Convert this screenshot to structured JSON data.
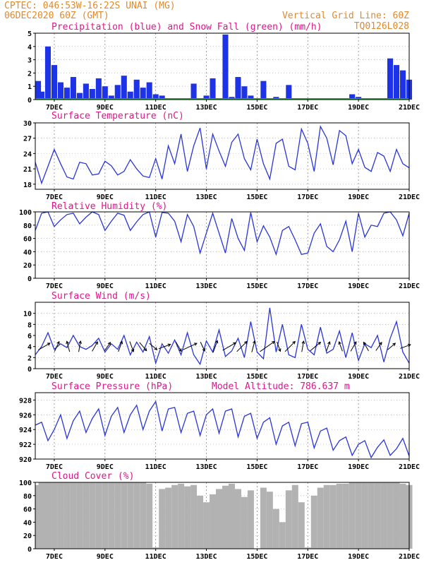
{
  "header": {
    "line1_left": "CPTEC:   046:53W-16:22S   UNAI (MG)",
    "line2_left": "06DEC2020 60Z (GMT)",
    "line1_right": "Vertical Grid Line: 60Z",
    "line2_right": "TQ0126L028"
  },
  "x_axis": {
    "start_day": 6.25,
    "end_day": 21.0,
    "tick_labels": [
      "7DEC",
      "9DEC",
      "11DEC",
      "13DEC",
      "15DEC",
      "17DEC",
      "19DEC",
      "21DEC"
    ],
    "tick_days": [
      7,
      9,
      11,
      13,
      15,
      17,
      19,
      21
    ]
  },
  "chart_data": [
    {
      "id": "precip",
      "type": "bar",
      "title": "Precipitation (blue) and Snow Fall (green) (mm/h)",
      "ylim": [
        0,
        5
      ],
      "yticks": [
        0,
        1,
        2,
        3,
        4,
        5
      ],
      "colors": {
        "precip": "#1e32e6",
        "snow": "#1faa3a"
      },
      "series": [
        {
          "name": "precip",
          "x": [
            6.25,
            6.5,
            6.75,
            7.0,
            7.25,
            7.5,
            7.75,
            8.0,
            8.25,
            8.5,
            8.75,
            9.0,
            9.25,
            9.5,
            9.75,
            10.0,
            10.25,
            10.5,
            10.75,
            11.0,
            11.25,
            11.5,
            11.75,
            12.0,
            12.25,
            12.5,
            12.75,
            13.0,
            13.25,
            13.5,
            13.75,
            14.0,
            14.25,
            14.5,
            14.75,
            15.0,
            15.25,
            15.5,
            15.75,
            16.0,
            16.25,
            16.5,
            16.75,
            17.0,
            17.25,
            17.5,
            17.75,
            18.0,
            18.25,
            18.5,
            18.75,
            19.0,
            19.25,
            19.5,
            19.75,
            20.0,
            20.25,
            20.5,
            20.75,
            21.0
          ],
          "values": [
            1.4,
            0.6,
            4.0,
            2.6,
            1.3,
            0.9,
            1.7,
            0.5,
            1.2,
            0.8,
            1.6,
            1.0,
            0.3,
            1.1,
            1.8,
            0.6,
            1.5,
            0.9,
            1.3,
            0.4,
            0.3,
            0.0,
            0.0,
            0.0,
            0.1,
            1.2,
            0.0,
            0.3,
            1.6,
            0.0,
            4.9,
            0.2,
            1.7,
            1.0,
            0.3,
            0.0,
            1.4,
            0.1,
            0.2,
            0.1,
            1.1,
            0.0,
            0.0,
            0.0,
            0.0,
            0.0,
            0.0,
            0.0,
            0.0,
            0.0,
            0.4,
            0.2,
            0.1,
            0.1,
            0.1,
            0.0,
            3.1,
            2.6,
            2.2,
            1.5
          ]
        },
        {
          "name": "snow",
          "values": [
            0,
            0,
            0,
            0,
            0,
            0,
            0,
            0,
            0,
            0,
            0,
            0,
            0,
            0,
            0,
            0,
            0,
            0,
            0,
            0,
            0,
            0,
            0,
            0,
            0,
            0,
            0,
            0,
            0,
            0,
            0,
            0,
            0,
            0,
            0,
            0,
            0,
            0,
            0,
            0,
            0,
            0,
            0,
            0,
            0,
            0,
            0,
            0,
            0,
            0,
            0,
            0,
            0,
            0,
            0,
            0,
            0,
            0,
            0,
            0
          ]
        }
      ]
    },
    {
      "id": "temp",
      "type": "line",
      "title": "Surface Temperature (nC)",
      "ylim": [
        17,
        30
      ],
      "yticks": [
        18,
        21,
        24,
        27,
        30
      ],
      "series": [
        {
          "name": "temperature",
          "x": [
            6.25,
            6.5,
            6.75,
            7.0,
            7.25,
            7.5,
            7.75,
            8.0,
            8.25,
            8.5,
            8.75,
            9.0,
            9.25,
            9.5,
            9.75,
            10.0,
            10.25,
            10.5,
            10.75,
            11.0,
            11.25,
            11.5,
            11.75,
            12.0,
            12.25,
            12.5,
            12.75,
            13.0,
            13.25,
            13.5,
            13.75,
            14.0,
            14.25,
            14.5,
            14.75,
            15.0,
            15.25,
            15.5,
            15.75,
            16.0,
            16.25,
            16.5,
            16.75,
            17.0,
            17.25,
            17.5,
            17.75,
            18.0,
            18.25,
            18.5,
            18.75,
            19.0,
            19.25,
            19.5,
            19.75,
            20.0,
            20.25,
            20.5,
            20.75,
            21.0
          ],
          "values": [
            22.3,
            18.2,
            21.5,
            24.8,
            22.0,
            19.4,
            19.0,
            22.3,
            22.0,
            19.8,
            20.0,
            22.5,
            21.6,
            19.8,
            20.5,
            22.8,
            21.0,
            19.6,
            19.3,
            23.0,
            19.0,
            25.5,
            22.0,
            27.8,
            20.5,
            25.5,
            29.0,
            21.0,
            27.8,
            24.5,
            21.5,
            26.2,
            27.8,
            23.0,
            20.8,
            26.8,
            22.0,
            19.0,
            26.0,
            26.8,
            21.5,
            20.8,
            28.8,
            26.0,
            20.5,
            29.3,
            27.0,
            21.8,
            28.5,
            27.5,
            22.0,
            24.8,
            21.3,
            20.5,
            24.2,
            23.5,
            20.5,
            24.8,
            22.0,
            21.2
          ]
        }
      ]
    },
    {
      "id": "rh",
      "type": "line",
      "title": "Relative Humidity (%)",
      "ylim": [
        0,
        100
      ],
      "yticks": [
        0,
        20,
        40,
        60,
        80,
        100
      ],
      "series": [
        {
          "name": "relative_humidity",
          "x": [
            6.25,
            6.5,
            6.75,
            7.0,
            7.25,
            7.5,
            7.75,
            8.0,
            8.25,
            8.5,
            8.75,
            9.0,
            9.25,
            9.5,
            9.75,
            10.0,
            10.25,
            10.5,
            10.75,
            11.0,
            11.25,
            11.5,
            11.75,
            12.0,
            12.25,
            12.5,
            12.75,
            13.0,
            13.25,
            13.5,
            13.75,
            14.0,
            14.25,
            14.5,
            14.75,
            15.0,
            15.25,
            15.5,
            15.75,
            16.0,
            16.25,
            16.5,
            16.75,
            17.0,
            17.25,
            17.5,
            17.75,
            18.0,
            18.25,
            18.5,
            18.75,
            19.0,
            19.25,
            19.5,
            19.75,
            20.0,
            20.25,
            20.5,
            20.75,
            21.0
          ],
          "values": [
            72,
            98,
            100,
            78,
            88,
            96,
            98,
            82,
            92,
            100,
            96,
            72,
            86,
            98,
            95,
            72,
            85,
            96,
            100,
            62,
            99,
            98,
            86,
            55,
            96,
            78,
            38,
            68,
            98,
            68,
            38,
            90,
            60,
            42,
            99,
            55,
            79,
            62,
            36,
            72,
            78,
            58,
            36,
            38,
            68,
            82,
            48,
            40,
            58,
            86,
            40,
            98,
            62,
            80,
            78,
            98,
            100,
            88,
            64,
            98
          ]
        }
      ]
    },
    {
      "id": "wind",
      "type": "line",
      "title": "Surface Wind (m/s)",
      "ylim": [
        0,
        12
      ],
      "yticks": [
        0,
        2,
        4,
        6,
        8,
        10
      ],
      "series": [
        {
          "name": "wind_speed",
          "x": [
            6.25,
            6.5,
            6.75,
            7.0,
            7.25,
            7.5,
            7.75,
            8.0,
            8.25,
            8.5,
            8.75,
            9.0,
            9.25,
            9.5,
            9.75,
            10.0,
            10.25,
            10.5,
            10.75,
            11.0,
            11.25,
            11.5,
            11.75,
            12.0,
            12.25,
            12.5,
            12.75,
            13.0,
            13.25,
            13.5,
            13.75,
            14.0,
            14.25,
            14.5,
            14.75,
            15.0,
            15.25,
            15.5,
            15.75,
            16.0,
            16.25,
            16.5,
            16.75,
            17.0,
            17.25,
            17.5,
            17.75,
            18.0,
            18.25,
            18.5,
            18.75,
            19.0,
            19.25,
            19.5,
            19.75,
            20.0,
            20.25,
            20.5,
            20.75,
            21.0
          ],
          "values": [
            2.5,
            4.0,
            6.5,
            3.5,
            4.5,
            3.8,
            6.0,
            4.0,
            3.5,
            4.2,
            5.5,
            3.0,
            4.5,
            3.5,
            6.0,
            2.5,
            4.8,
            3.0,
            5.8,
            1.0,
            4.5,
            2.8,
            5.2,
            2.5,
            6.5,
            2.5,
            0.8,
            5.0,
            3.0,
            7.0,
            2.2,
            3.2,
            5.5,
            2.0,
            8.5,
            3.0,
            1.8,
            11.0,
            3.0,
            8.0,
            2.5,
            2.0,
            8.0,
            3.5,
            2.5,
            7.5,
            2.8,
            3.5,
            6.8,
            2.0,
            6.5,
            1.5,
            4.5,
            3.8,
            6.0,
            1.2,
            5.5,
            8.5,
            3.0,
            1.0
          ]
        }
      ],
      "arrows": [
        {
          "x": 6.6,
          "speed": 5.0,
          "dir_deg": 60
        },
        {
          "x": 7.1,
          "speed": 3.5,
          "dir_deg": 25
        },
        {
          "x": 7.55,
          "speed": 3.5,
          "dir_deg": 345
        },
        {
          "x": 8.0,
          "speed": 3.5,
          "dir_deg": 10
        },
        {
          "x": 8.6,
          "speed": 3.5,
          "dir_deg": 30
        },
        {
          "x": 9.1,
          "speed": 3.0,
          "dir_deg": 35
        },
        {
          "x": 9.6,
          "speed": 3.5,
          "dir_deg": 20
        },
        {
          "x": 10.05,
          "speed": 3.5,
          "dir_deg": 160
        },
        {
          "x": 10.5,
          "speed": 3.5,
          "dir_deg": 140
        },
        {
          "x": 10.9,
          "speed": 3.0,
          "dir_deg": 130
        },
        {
          "x": 11.35,
          "speed": 4.5,
          "dir_deg": 70
        },
        {
          "x": 11.9,
          "speed": 3.5,
          "dir_deg": 150
        },
        {
          "x": 12.35,
          "speed": 6.0,
          "dir_deg": 65
        },
        {
          "x": 12.85,
          "speed": 3.0,
          "dir_deg": 155
        },
        {
          "x": 13.35,
          "speed": 4.5,
          "dir_deg": 20
        },
        {
          "x": 13.9,
          "speed": 6.0,
          "dir_deg": 60
        },
        {
          "x": 14.4,
          "speed": 5.5,
          "dir_deg": 45
        },
        {
          "x": 14.85,
          "speed": 4.0,
          "dir_deg": 15
        },
        {
          "x": 15.4,
          "speed": 7.5,
          "dir_deg": 55
        },
        {
          "x": 15.85,
          "speed": 3.0,
          "dir_deg": 160
        },
        {
          "x": 16.3,
          "speed": 5.5,
          "dir_deg": 45
        },
        {
          "x": 16.8,
          "speed": 3.5,
          "dir_deg": 10
        },
        {
          "x": 17.3,
          "speed": 5.0,
          "dir_deg": 50
        },
        {
          "x": 17.8,
          "speed": 3.0,
          "dir_deg": 20
        },
        {
          "x": 18.3,
          "speed": 3.0,
          "dir_deg": 340
        },
        {
          "x": 18.8,
          "speed": 3.5,
          "dir_deg": 30
        },
        {
          "x": 19.3,
          "speed": 3.0,
          "dir_deg": 330
        },
        {
          "x": 19.8,
          "speed": 3.0,
          "dir_deg": 35
        },
        {
          "x": 20.3,
          "speed": 3.0,
          "dir_deg": 50
        },
        {
          "x": 20.85,
          "speed": 3.5,
          "dir_deg": 70
        }
      ]
    },
    {
      "id": "pressure",
      "type": "line",
      "title": "Surface Pressure (hPa)",
      "subtitle": "Model Altitude: 786.637  m",
      "ylim": [
        920,
        929
      ],
      "yticks": [
        920,
        922,
        924,
        926,
        928
      ],
      "series": [
        {
          "name": "pressure",
          "x": [
            6.25,
            6.5,
            6.75,
            7.0,
            7.25,
            7.5,
            7.75,
            8.0,
            8.25,
            8.5,
            8.75,
            9.0,
            9.25,
            9.5,
            9.75,
            10.0,
            10.25,
            10.5,
            10.75,
            11.0,
            11.25,
            11.5,
            11.75,
            12.0,
            12.25,
            12.5,
            12.75,
            13.0,
            13.25,
            13.5,
            13.75,
            14.0,
            14.25,
            14.5,
            14.75,
            15.0,
            15.25,
            15.5,
            15.75,
            16.0,
            16.25,
            16.5,
            16.75,
            17.0,
            17.25,
            17.5,
            17.75,
            18.0,
            18.25,
            18.5,
            18.75,
            19.0,
            19.25,
            19.5,
            19.75,
            20.0,
            20.25,
            20.5,
            20.75,
            21.0
          ],
          "values": [
            924.6,
            925.0,
            922.5,
            924.0,
            926.0,
            922.8,
            925.2,
            926.5,
            923.6,
            925.5,
            926.8,
            923.2,
            925.8,
            927.0,
            923.6,
            926.0,
            927.3,
            924.0,
            926.5,
            927.8,
            923.8,
            926.8,
            927.0,
            923.6,
            926.2,
            926.5,
            923.2,
            926.0,
            926.8,
            923.5,
            926.5,
            926.8,
            923.0,
            925.8,
            926.2,
            922.8,
            925.0,
            925.6,
            922.0,
            924.5,
            925.0,
            921.8,
            924.8,
            925.0,
            921.5,
            923.8,
            924.2,
            921.2,
            922.5,
            923.0,
            920.5,
            922.0,
            922.5,
            920.2,
            921.6,
            922.6,
            920.5,
            921.4,
            922.8,
            920.4
          ]
        }
      ]
    },
    {
      "id": "cloud",
      "type": "area",
      "title": "Cloud Cover (%)",
      "ylim": [
        0,
        100
      ],
      "yticks": [
        0,
        20,
        40,
        60,
        80,
        100
      ],
      "colors": {
        "fill": "#b2b2b2"
      },
      "series": [
        {
          "name": "cloud_cover",
          "x": [
            6.25,
            6.5,
            6.75,
            7.0,
            7.25,
            7.5,
            7.75,
            8.0,
            8.25,
            8.5,
            8.75,
            9.0,
            9.25,
            9.5,
            9.75,
            10.0,
            10.25,
            10.5,
            10.75,
            11.0,
            11.25,
            11.5,
            11.75,
            12.0,
            12.25,
            12.5,
            12.75,
            13.0,
            13.25,
            13.5,
            13.75,
            14.0,
            14.25,
            14.5,
            14.75,
            15.0,
            15.25,
            15.5,
            15.75,
            16.0,
            16.25,
            16.5,
            16.75,
            17.0,
            17.25,
            17.5,
            17.75,
            18.0,
            18.25,
            18.5,
            18.75,
            19.0,
            19.25,
            19.5,
            19.75,
            20.0,
            20.25,
            20.5,
            20.75,
            21.0
          ],
          "values": [
            96,
            100,
            100,
            100,
            100,
            100,
            100,
            100,
            100,
            100,
            100,
            100,
            100,
            100,
            100,
            100,
            100,
            100,
            98,
            2,
            90,
            92,
            96,
            98,
            94,
            96,
            80,
            70,
            82,
            90,
            95,
            98,
            90,
            78,
            88,
            0,
            92,
            86,
            60,
            40,
            88,
            96,
            70,
            2,
            80,
            92,
            96,
            96,
            98,
            98,
            100,
            100,
            100,
            100,
            100,
            100,
            100,
            100,
            98,
            96
          ]
        }
      ]
    }
  ]
}
